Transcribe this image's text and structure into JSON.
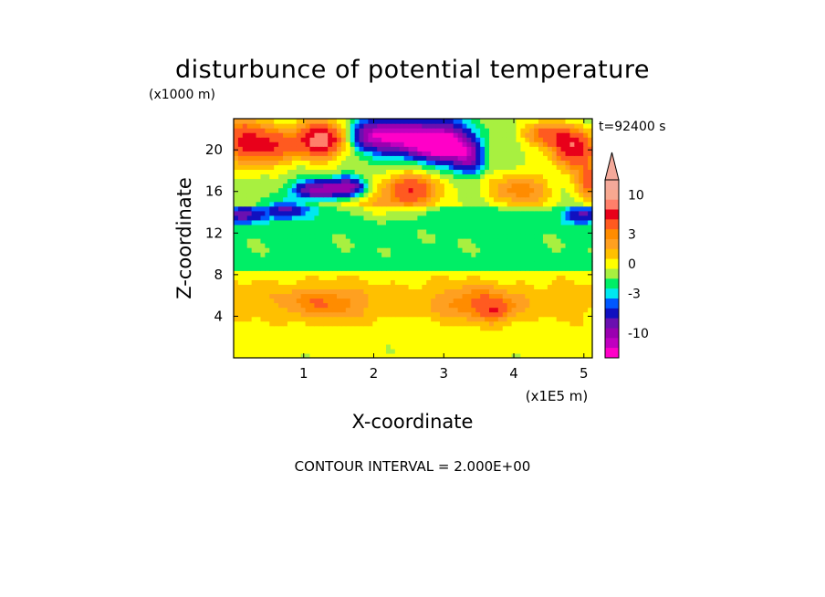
{
  "chart_data": {
    "type": "heatmap",
    "title": "disturbunce of potential temperature",
    "time_label": "t=92400 s",
    "xlabel": "X-coordinate",
    "ylabel": "Z-coordinate",
    "x_unit": "(x1E5 m)",
    "y_unit": "(x1000 m)",
    "x_ticks": [
      "1",
      "2",
      "3",
      "4",
      "5"
    ],
    "y_ticks": [
      "4",
      "8",
      "12",
      "16",
      "20"
    ],
    "xlim": [
      0,
      5.12
    ],
    "ylim": [
      0,
      23
    ],
    "footer": "CONTOUR INTERVAL = 2.000E+00",
    "colorbar": {
      "tick_labels": [
        "10",
        "3",
        "0",
        "-3",
        "-10"
      ],
      "tick_values": [
        10,
        3,
        0,
        -3,
        -10
      ],
      "levels": [
        {
          "range": [
            12,
            99
          ],
          "color": "#f4a99a"
        },
        {
          "range": [
            10,
            12
          ],
          "color": "#f8a890"
        },
        {
          "range": [
            8,
            10
          ],
          "color": "#ff7f6a"
        },
        {
          "range": [
            6,
            8
          ],
          "color": "#e8001a"
        },
        {
          "range": [
            4,
            6
          ],
          "color": "#ff5a20"
        },
        {
          "range": [
            3,
            4
          ],
          "color": "#ff8c00"
        },
        {
          "range": [
            2,
            3
          ],
          "color": "#ffa020"
        },
        {
          "range": [
            1,
            2
          ],
          "color": "#ffc000"
        },
        {
          "range": [
            0,
            1
          ],
          "color": "#ffff00"
        },
        {
          "range": [
            -1,
            0
          ],
          "color": "#a8f040"
        },
        {
          "range": [
            -2,
            -1
          ],
          "color": "#00ee66"
        },
        {
          "range": [
            -3,
            -2
          ],
          "color": "#00e8f0"
        },
        {
          "range": [
            -4,
            -3
          ],
          "color": "#0058ff"
        },
        {
          "range": [
            -6,
            -4
          ],
          "color": "#1010c0"
        },
        {
          "range": [
            -8,
            -6
          ],
          "color": "#6a10b0"
        },
        {
          "range": [
            -10,
            -8
          ],
          "color": "#9a00b0"
        },
        {
          "range": [
            -12,
            -10
          ],
          "color": "#c000c0"
        },
        {
          "range": [
            -99,
            -12
          ],
          "color": "#ff00c8"
        }
      ]
    }
  }
}
